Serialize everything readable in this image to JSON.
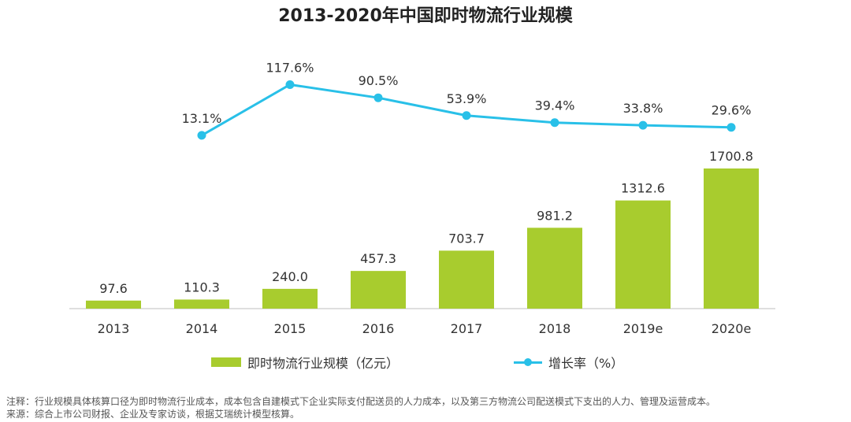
{
  "chart_data": {
    "type": "bar",
    "title": "2013-2020年中国即时物流行业规模",
    "categories": [
      "2013",
      "2014",
      "2015",
      "2016",
      "2017",
      "2018",
      "2019e",
      "2020e"
    ],
    "series": [
      {
        "name": "即时物流行业规模（亿元）",
        "type": "bar",
        "values": [
          97.6,
          110.3,
          240.0,
          457.3,
          703.7,
          981.2,
          1312.6,
          1700.8
        ],
        "labels": [
          "97.6",
          "110.3",
          "240.0",
          "457.3",
          "703.7",
          "981.2",
          "1312.6",
          "1700.8"
        ]
      },
      {
        "name": "增长率（%）",
        "type": "line",
        "values": [
          null,
          13.1,
          117.6,
          90.5,
          53.9,
          39.4,
          33.8,
          29.6
        ],
        "labels": [
          "",
          "13.1%",
          "117.6%",
          "90.5%",
          "53.9%",
          "39.4%",
          "33.8%",
          "29.6%"
        ]
      }
    ],
    "ylim": [
      0,
      1800
    ],
    "ylim_secondary": [
      0,
      130
    ],
    "colors": {
      "bar": "#a8cc2e",
      "line": "#29c0e8",
      "axis": "#bfbfbf"
    }
  },
  "notes": {
    "note": "注释：行业规模具体核算口径为即时物流行业成本，成本包含自建模式下企业实际支付配送员的人力成本，以及第三方物流公司配送模式下支出的人力、管理及运营成本。",
    "source": "来源：综合上市公司财报、企业及专家访谈，根据艾瑞统计模型核算。"
  }
}
